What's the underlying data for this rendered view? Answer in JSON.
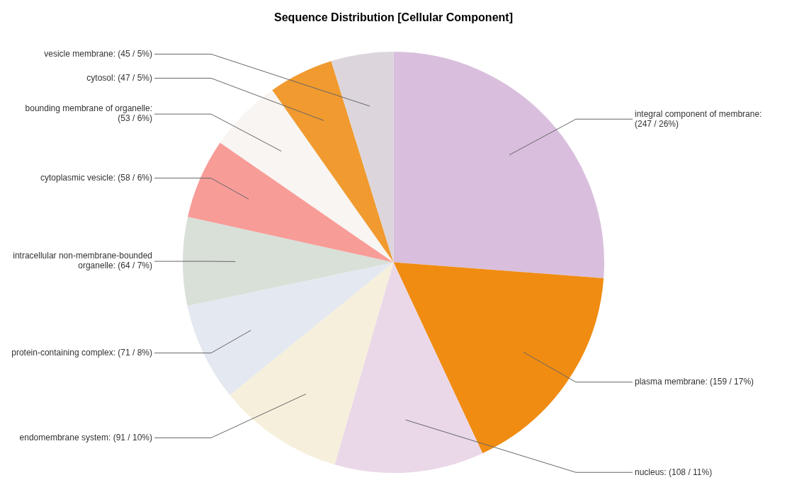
{
  "chart_data": {
    "type": "pie",
    "title": "Sequence Distribution [Cellular Component]",
    "categories": [
      "integral component of membrane",
      "plasma membrane",
      "nucleus",
      "endomembrane system",
      "protein-containing complex",
      "intracellular non-membrane-bounded organelle",
      "cytoplasmic vesicle",
      "bounding membrane of organelle",
      "cytosol",
      "vesicle membrane"
    ],
    "values": [
      247,
      159,
      108,
      91,
      71,
      64,
      58,
      53,
      47,
      45
    ],
    "value_labels": [
      ": (247 / 26%)",
      ": (159 / 17%)",
      ": (108 / 11%)",
      ": (91 / 10%)",
      ": (71 / 8%)",
      ": (64 / 7%)",
      ": (58 / 6%)",
      ": (53 / 6%)",
      ": (47 / 5%)",
      ": (45 / 5%)"
    ],
    "colors": [
      "#d9bfdd",
      "#f08c12",
      "#ead8e8",
      "#f6efdb",
      "#e4e8f0",
      "#d8e0d8",
      "#f89c98",
      "#f8f5f2",
      "#f09a30",
      "#dcd6dc"
    ],
    "legend": false
  }
}
